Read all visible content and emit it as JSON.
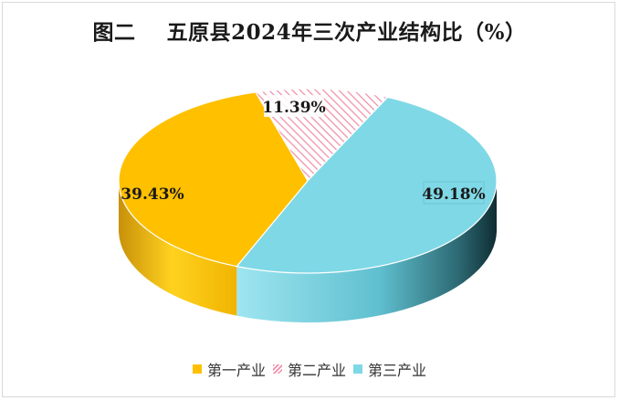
{
  "title": "图二    五原县2024年三次产业结构比（%）",
  "chart_data": {
    "type": "pie",
    "three_d": true,
    "title": "图二    五原县2024年三次产业结构比（%）",
    "legend_position": "bottom",
    "slices": [
      {
        "name": "第一产业",
        "value": 39.43,
        "label": "39.43%",
        "color": "#ffc000",
        "pattern": "solid"
      },
      {
        "name": "第二产业",
        "value": 11.39,
        "label": "11.39%",
        "color": "#f08ca8",
        "pattern": "diagonal-stripes"
      },
      {
        "name": "第三产业",
        "value": 49.18,
        "label": "49.18%",
        "color": "#7fd8e6",
        "pattern": "solid"
      }
    ]
  }
}
